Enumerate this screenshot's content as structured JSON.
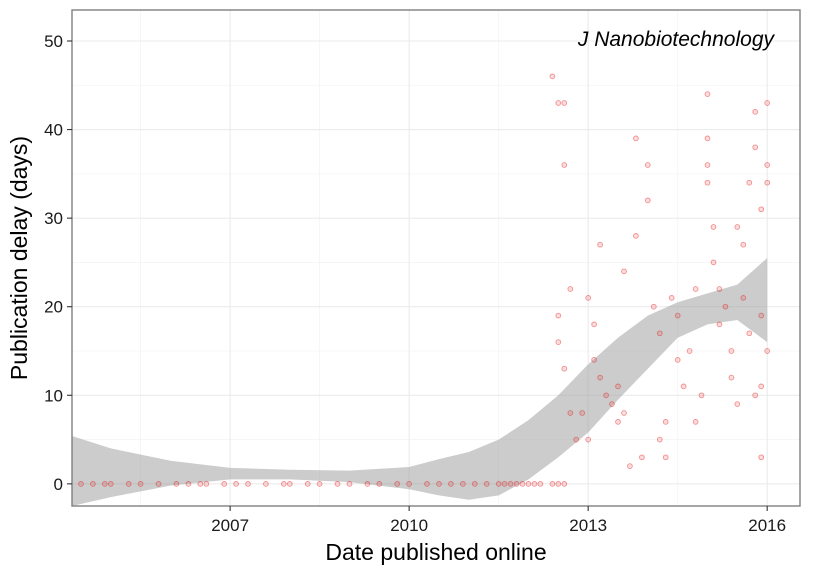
{
  "chart_data": {
    "type": "scatter",
    "title": "",
    "annotation": "J Nanobiotechnology",
    "xlabel": "Date published online",
    "ylabel": "Publication delay (days)",
    "xlim": [
      2004.35,
      2016.55
    ],
    "ylim": [
      -2.5,
      53.5
    ],
    "x_ticks": [
      2007,
      2010,
      2013,
      2016
    ],
    "x_tick_labels": [
      "2007",
      "2010",
      "2013",
      "2016"
    ],
    "x_minor_ticks": [
      2005.5,
      2008.5,
      2011.5,
      2014.5
    ],
    "y_ticks": [
      0,
      10,
      20,
      30,
      40,
      50
    ],
    "y_tick_labels": [
      "0",
      "10",
      "20",
      "30",
      "40",
      "50"
    ],
    "y_minor_ticks": [
      5,
      15,
      25,
      35,
      45
    ],
    "grid": true,
    "legend": "none",
    "colors": {
      "points": "#e41a1c",
      "band": "#999999",
      "grid": "#ebebeb",
      "border": "#7f7f7f"
    },
    "points": [
      [
        2004.5,
        0
      ],
      [
        2004.7,
        0
      ],
      [
        2004.9,
        0
      ],
      [
        2005.0,
        0
      ],
      [
        2005.3,
        0
      ],
      [
        2005.5,
        0
      ],
      [
        2005.8,
        0
      ],
      [
        2006.1,
        0
      ],
      [
        2006.3,
        0
      ],
      [
        2006.5,
        0
      ],
      [
        2006.6,
        0
      ],
      [
        2006.9,
        0
      ],
      [
        2007.1,
        0
      ],
      [
        2007.3,
        0
      ],
      [
        2007.6,
        0
      ],
      [
        2007.9,
        0
      ],
      [
        2008.0,
        0
      ],
      [
        2008.3,
        0
      ],
      [
        2008.5,
        0
      ],
      [
        2008.8,
        0
      ],
      [
        2009.0,
        0
      ],
      [
        2009.3,
        0
      ],
      [
        2009.5,
        0
      ],
      [
        2009.8,
        0
      ],
      [
        2010.0,
        0
      ],
      [
        2010.3,
        0
      ],
      [
        2010.5,
        0
      ],
      [
        2010.7,
        0
      ],
      [
        2010.9,
        0
      ],
      [
        2011.1,
        0
      ],
      [
        2011.3,
        0
      ],
      [
        2011.5,
        0
      ],
      [
        2011.6,
        0
      ],
      [
        2011.7,
        0
      ],
      [
        2011.8,
        0
      ],
      [
        2011.9,
        0
      ],
      [
        2012.0,
        0
      ],
      [
        2012.1,
        0
      ],
      [
        2012.2,
        0
      ],
      [
        2012.4,
        0
      ],
      [
        2012.5,
        0
      ],
      [
        2012.6,
        0
      ],
      [
        2012.4,
        46
      ],
      [
        2012.5,
        43
      ],
      [
        2012.6,
        43
      ],
      [
        2012.6,
        36
      ],
      [
        2012.7,
        22
      ],
      [
        2012.5,
        19
      ],
      [
        2012.5,
        16
      ],
      [
        2012.6,
        13
      ],
      [
        2012.7,
        8
      ],
      [
        2012.8,
        5
      ],
      [
        2012.9,
        8
      ],
      [
        2013.0,
        5
      ],
      [
        2013.0,
        21
      ],
      [
        2013.1,
        18
      ],
      [
        2013.1,
        14
      ],
      [
        2013.2,
        12
      ],
      [
        2013.2,
        27
      ],
      [
        2013.3,
        10
      ],
      [
        2013.4,
        9
      ],
      [
        2013.5,
        7
      ],
      [
        2013.5,
        11
      ],
      [
        2013.6,
        8
      ],
      [
        2013.6,
        24
      ],
      [
        2013.8,
        28
      ],
      [
        2013.8,
        39
      ],
      [
        2014.0,
        36
      ],
      [
        2014.0,
        32
      ],
      [
        2014.1,
        20
      ],
      [
        2014.2,
        17
      ],
      [
        2014.3,
        7
      ],
      [
        2014.3,
        3
      ],
      [
        2014.4,
        21
      ],
      [
        2014.5,
        19
      ],
      [
        2014.5,
        14
      ],
      [
        2014.6,
        11
      ],
      [
        2014.7,
        15
      ],
      [
        2014.8,
        22
      ],
      [
        2014.8,
        7
      ],
      [
        2014.9,
        10
      ],
      [
        2015.0,
        44
      ],
      [
        2015.0,
        39
      ],
      [
        2015.0,
        36
      ],
      [
        2015.0,
        34
      ],
      [
        2015.1,
        29
      ],
      [
        2015.1,
        25
      ],
      [
        2015.2,
        22
      ],
      [
        2015.2,
        18
      ],
      [
        2015.3,
        20
      ],
      [
        2015.4,
        15
      ],
      [
        2015.4,
        12
      ],
      [
        2015.5,
        9
      ],
      [
        2015.5,
        29
      ],
      [
        2015.6,
        27
      ],
      [
        2015.6,
        21
      ],
      [
        2015.7,
        17
      ],
      [
        2015.7,
        34
      ],
      [
        2015.8,
        38
      ],
      [
        2015.8,
        42
      ],
      [
        2015.9,
        11
      ],
      [
        2015.9,
        31
      ],
      [
        2015.9,
        19
      ],
      [
        2016.0,
        43
      ],
      [
        2016.0,
        36
      ],
      [
        2016.0,
        34
      ],
      [
        2016.0,
        15
      ],
      [
        2015.9,
        3
      ],
      [
        2015.8,
        10
      ],
      [
        2013.7,
        2
      ],
      [
        2013.9,
        3
      ],
      [
        2014.2,
        5
      ]
    ],
    "smooth_upper": [
      [
        2004.35,
        5.4
      ],
      [
        2005,
        4.0
      ],
      [
        2006,
        2.6
      ],
      [
        2007,
        1.8
      ],
      [
        2008,
        1.6
      ],
      [
        2009,
        1.5
      ],
      [
        2010,
        1.9
      ],
      [
        2010.5,
        2.8
      ],
      [
        2011,
        3.6
      ],
      [
        2011.5,
        5.0
      ],
      [
        2012,
        7.2
      ],
      [
        2012.5,
        10.0
      ],
      [
        2013,
        13.5
      ],
      [
        2013.5,
        16.5
      ],
      [
        2014,
        19.0
      ],
      [
        2014.5,
        20.5
      ],
      [
        2015,
        21.5
      ],
      [
        2015.5,
        22.5
      ],
      [
        2016,
        25.5
      ]
    ],
    "smooth_lower": [
      [
        2004.35,
        -2.5
      ],
      [
        2005,
        -1.5
      ],
      [
        2006,
        -0.2
      ],
      [
        2007,
        0.5
      ],
      [
        2008,
        0.5
      ],
      [
        2009,
        0.2
      ],
      [
        2010,
        -0.6
      ],
      [
        2010.5,
        -1.3
      ],
      [
        2011,
        -1.8
      ],
      [
        2011.5,
        -1.3
      ],
      [
        2012,
        0.5
      ],
      [
        2012.5,
        3.0
      ],
      [
        2013,
        5.8
      ],
      [
        2013.5,
        9.5
      ],
      [
        2014,
        13.0
      ],
      [
        2014.5,
        16.5
      ],
      [
        2015,
        18.0
      ],
      [
        2015.5,
        18.5
      ],
      [
        2016,
        16.0
      ]
    ]
  }
}
